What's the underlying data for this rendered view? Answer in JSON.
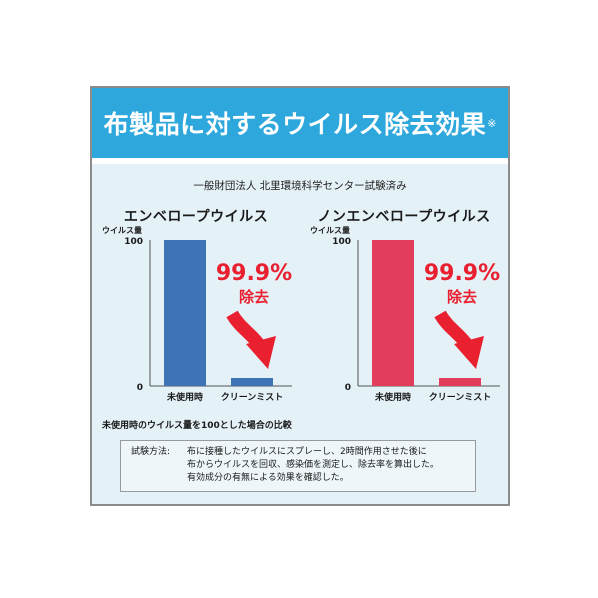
{
  "header": {
    "title": "布製品に対するウイルス除去効果",
    "title_mark": "※"
  },
  "organization": "一般財団法人 北里環境科学センター試験済み",
  "footnote": "未使用時のウイルス量を100とした場合の比較",
  "method": {
    "label": "試験方法:",
    "lines": [
      "布に接種したウイルスにスプレーし、2時間作用させた後に",
      "布からウイルスを回収、感染価を測定し、除去率を算出した。",
      "有効成分の有無による効果を確認した。"
    ]
  },
  "colors": {
    "banner": "#2ea8dc",
    "background": "#e4f1f7",
    "blue_bar": "#3f73b8",
    "red_bar": "#e23d5c",
    "annotation_red": "#e8202f"
  },
  "icons": [
    "down-curved-arrow-icon"
  ],
  "chart_data": [
    {
      "type": "bar",
      "title": "エンベロープウイルス",
      "ylabel": "ウイルス量",
      "ylim": [
        0,
        100
      ],
      "yticks": [
        "0",
        "100"
      ],
      "categories": [
        "未使用時",
        "クリーンミスト"
      ],
      "values": [
        100,
        0.1
      ],
      "color": "#3f73b8",
      "annotation": {
        "value": "99.9%",
        "text": "除去"
      }
    },
    {
      "type": "bar",
      "title": "ノンエンベロープウイルス",
      "ylabel": "ウイルス量",
      "ylim": [
        0,
        100
      ],
      "yticks": [
        "0",
        "100"
      ],
      "categories": [
        "未使用時",
        "クリーンミスト"
      ],
      "values": [
        100,
        0.1
      ],
      "color": "#e23d5c",
      "annotation": {
        "value": "99.9%",
        "text": "除去"
      }
    }
  ]
}
